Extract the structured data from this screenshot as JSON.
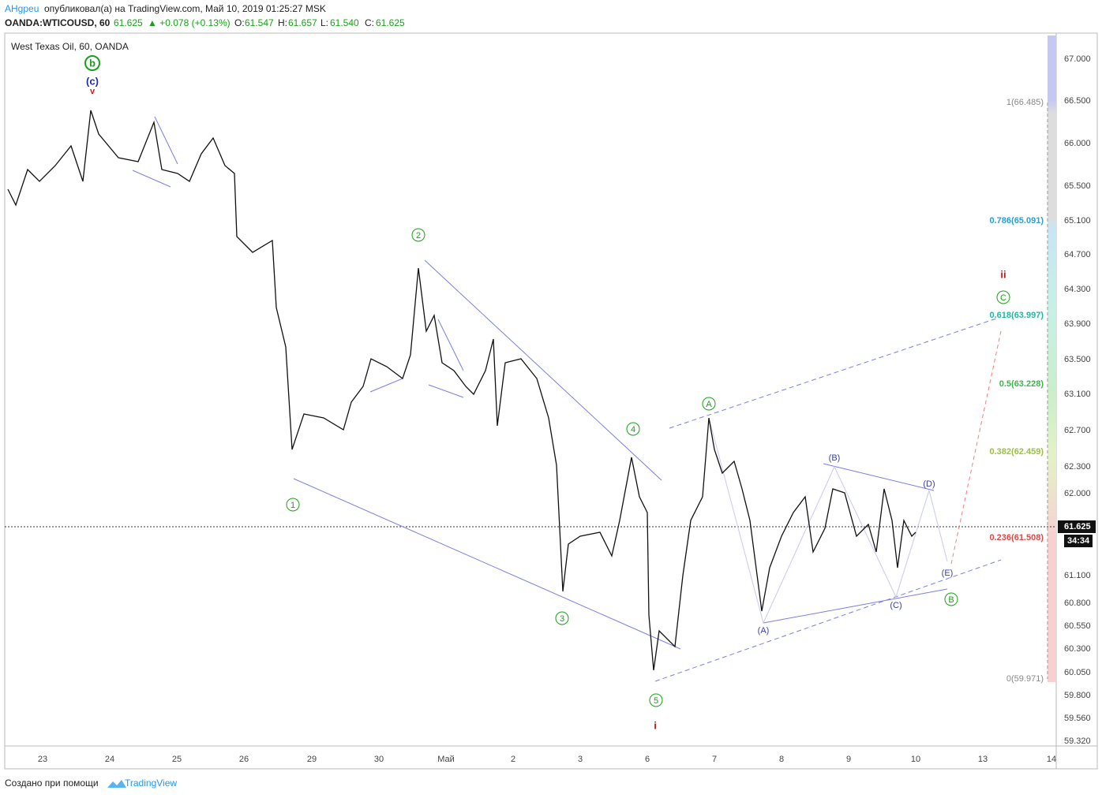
{
  "header": {
    "author": "AHgpeu",
    "published": "опубликовал(а) на TradingView.com, Май 10, 2019 01:25:27 MSK",
    "symbol": "OANDA:WTICOUSD, 60",
    "last": "61.625",
    "change": "▲ +0.078 (+0.13%)",
    "o_label": "O:",
    "o": "61.547",
    "h_label": "H:",
    "h": "61.657",
    "l_label": "L:",
    "l": "61.540",
    "c_label": "C:",
    "c": "61.625"
  },
  "legend": "West Texas Oil, 60, OANDA",
  "price_axis": [
    "67.000",
    "66.500",
    "66.000",
    "65.500",
    "65.100",
    "64.700",
    "64.300",
    "63.900",
    "63.500",
    "63.100",
    "62.700",
    "62.300",
    "62.000",
    "61.100",
    "60.800",
    "60.550",
    "60.300",
    "60.050",
    "59.800",
    "59.560",
    "59.320"
  ],
  "price_tag": {
    "price": "61.625",
    "timer": "34:34"
  },
  "fib_levels": [
    "1(66.485)",
    "0.786(65.091)",
    "0.618(63.997)",
    "0.5(63.228)",
    "0.382(62.459)",
    "0.236(61.508)",
    "0(59.971)"
  ],
  "time_axis": [
    "23",
    "24",
    "25",
    "26",
    "29",
    "30",
    "Май",
    "2",
    "3",
    "6",
    "7",
    "8",
    "9",
    "10",
    "13",
    "14"
  ],
  "waves": [
    "b",
    "(c)",
    "v",
    "1",
    "2",
    "3",
    "4",
    "5",
    "i",
    "A",
    "(A)",
    "(B)",
    "(C)",
    "(D)",
    "(E)",
    "B",
    "C",
    "ii"
  ],
  "footer": {
    "text": "Создано при помощи",
    "brand": "TradingView"
  }
}
